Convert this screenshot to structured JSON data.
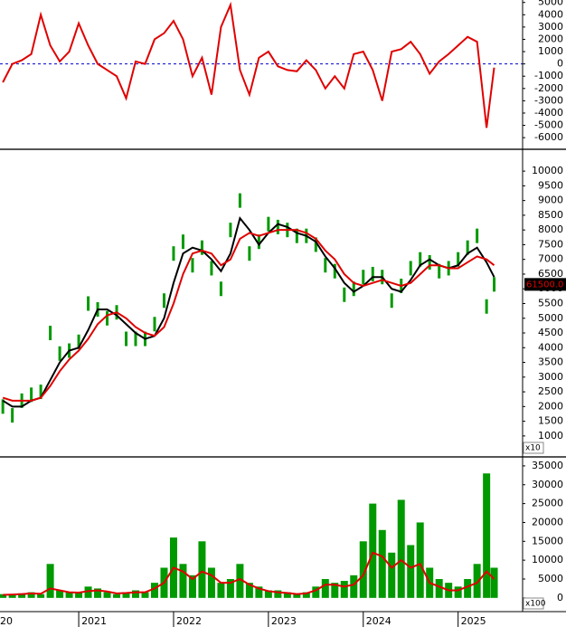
{
  "chart_data": [
    {
      "type": "line",
      "x": [
        2020.2,
        2020.3,
        2020.4,
        2020.5,
        2020.6,
        2020.7,
        2020.8,
        2020.9,
        2021.0,
        2021.1,
        2021.2,
        2021.3,
        2021.4,
        2021.5,
        2021.6,
        2021.7,
        2021.8,
        2021.9,
        2022.0,
        2022.1,
        2022.2,
        2022.3,
        2022.4,
        2022.5,
        2022.6,
        2022.7,
        2022.8,
        2022.9,
        2023.0,
        2023.1,
        2023.2,
        2023.3,
        2023.4,
        2023.5,
        2023.6,
        2023.7,
        2023.8,
        2023.9,
        2024.0,
        2024.1,
        2024.2,
        2024.3,
        2024.4,
        2024.5,
        2024.6,
        2024.7,
        2024.8,
        2024.9,
        2025.0,
        2025.1,
        2025.2,
        2025.3,
        2025.38
      ],
      "xlim": [
        2020.17,
        2025.68
      ],
      "ylim": [
        -6800,
        5200
      ],
      "yticks": [
        5000,
        4000,
        3000,
        2000,
        1000,
        0,
        -1000,
        -2000,
        -3000,
        -4000,
        -5000,
        -6000
      ],
      "baseline": 0,
      "series": [
        {
          "color": "#e00000",
          "style": "line",
          "values": [
            -1500,
            0,
            300,
            800,
            4000,
            1500,
            200,
            1000,
            3300,
            1500,
            0,
            -500,
            -1000,
            -2800,
            200,
            0,
            2000,
            2500,
            3500,
            2000,
            -1000,
            500,
            -2500,
            3000,
            4800,
            -500,
            -2500,
            500,
            1000,
            -200,
            -500,
            -600,
            300,
            -500,
            -2000,
            -1000,
            -2000,
            800,
            1000,
            -500,
            -3000,
            1000,
            1200,
            1800,
            800,
            -800,
            200,
            800,
            1500,
            2200,
            1800,
            -5200,
            -300
          ]
        }
      ]
    },
    {
      "type": "line",
      "x": [
        2020.2,
        2020.3,
        2020.4,
        2020.5,
        2020.6,
        2020.7,
        2020.8,
        2020.9,
        2021.0,
        2021.1,
        2021.2,
        2021.3,
        2021.4,
        2021.5,
        2021.6,
        2021.7,
        2021.8,
        2021.9,
        2022.0,
        2022.1,
        2022.2,
        2022.3,
        2022.4,
        2022.5,
        2022.6,
        2022.7,
        2022.8,
        2022.9,
        2023.0,
        2023.1,
        2023.2,
        2023.3,
        2023.4,
        2023.5,
        2023.6,
        2023.7,
        2023.8,
        2023.9,
        2024.0,
        2024.1,
        2024.2,
        2024.3,
        2024.4,
        2024.5,
        2024.6,
        2024.7,
        2024.8,
        2024.9,
        2025.0,
        2025.1,
        2025.2,
        2025.3,
        2025.38
      ],
      "xlim": [
        2020.17,
        2025.68
      ],
      "ylim": [
        350,
        10680
      ],
      "yticks": [
        10000,
        9500,
        9000,
        8500,
        8000,
        7500,
        7000,
        6500,
        6000,
        5500,
        5000,
        4500,
        4000,
        3500,
        3000,
        2500,
        2000,
        1500,
        1000
      ],
      "unit_label": "x10",
      "last_label": "61500.0",
      "series": [
        {
          "color": "#009900",
          "style": "bars",
          "values": [
            2000,
            1700,
            2200,
            2400,
            2500,
            4500,
            3800,
            3900,
            4200,
            5500,
            5300,
            5000,
            5200,
            4300,
            4300,
            4300,
            4800,
            5600,
            7200,
            7600,
            6800,
            7400,
            6700,
            6000,
            8000,
            9000,
            7200,
            7600,
            8200,
            8100,
            8000,
            7800,
            7800,
            7500,
            6800,
            6600,
            5800,
            6000,
            6400,
            6500,
            6400,
            5600,
            6100,
            6700,
            7000,
            6900,
            6600,
            6700,
            7000,
            7400,
            7800,
            5400,
            6150
          ]
        },
        {
          "color": "#000000",
          "style": "line",
          "values": [
            2200,
            2000,
            2000,
            2200,
            2300,
            2900,
            3500,
            3900,
            4000,
            4600,
            5300,
            5300,
            5100,
            4800,
            4500,
            4300,
            4400,
            5000,
            6200,
            7200,
            7400,
            7300,
            7000,
            6600,
            7200,
            8400,
            8000,
            7500,
            7900,
            8200,
            8100,
            7900,
            7800,
            7600,
            7100,
            6700,
            6200,
            5900,
            6100,
            6400,
            6400,
            6000,
            5900,
            6300,
            6800,
            7000,
            6800,
            6700,
            6800,
            7200,
            7400,
            6900,
            6400
          ]
        },
        {
          "color": "#e00000",
          "style": "line",
          "values": [
            2300,
            2200,
            2200,
            2200,
            2300,
            2700,
            3200,
            3600,
            3900,
            4300,
            4800,
            5100,
            5200,
            5000,
            4700,
            4500,
            4400,
            4700,
            5500,
            6500,
            7200,
            7300,
            7200,
            6800,
            7000,
            7700,
            7900,
            7800,
            7900,
            8000,
            8000,
            8000,
            7900,
            7700,
            7300,
            7000,
            6500,
            6200,
            6100,
            6200,
            6300,
            6200,
            6100,
            6200,
            6500,
            6800,
            6800,
            6700,
            6700,
            6900,
            7100,
            7000,
            6800
          ]
        }
      ]
    },
    {
      "type": "bar",
      "x": [
        2020.2,
        2020.3,
        2020.4,
        2020.5,
        2020.6,
        2020.7,
        2020.8,
        2020.9,
        2021.0,
        2021.1,
        2021.2,
        2021.3,
        2021.4,
        2021.5,
        2021.6,
        2021.7,
        2021.8,
        2021.9,
        2022.0,
        2022.1,
        2022.2,
        2022.3,
        2022.4,
        2022.5,
        2022.6,
        2022.7,
        2022.8,
        2022.9,
        2023.0,
        2023.1,
        2023.2,
        2023.3,
        2023.4,
        2023.5,
        2023.6,
        2023.7,
        2023.8,
        2023.9,
        2024.0,
        2024.1,
        2024.2,
        2024.3,
        2024.4,
        2024.5,
        2024.6,
        2024.7,
        2024.8,
        2024.9,
        2025.0,
        2025.1,
        2025.2,
        2025.3,
        2025.38
      ],
      "xlim": [
        2020.17,
        2025.68
      ],
      "ylim": [
        -3400,
        36900
      ],
      "yticks": [
        35000,
        30000,
        25000,
        20000,
        15000,
        10000,
        5000,
        0
      ],
      "unit_label": "x100",
      "xticks": [
        {
          "value": 2020,
          "label": "20"
        },
        2021,
        2022,
        2023,
        2024,
        2025
      ],
      "series": [
        {
          "color": "#009900",
          "style": "bars",
          "values": [
            1000,
            800,
            1200,
            1500,
            1000,
            9000,
            2000,
            1500,
            1500,
            3000,
            2500,
            1500,
            1000,
            1500,
            2000,
            1500,
            4000,
            8000,
            16000,
            9000,
            6000,
            15000,
            8000,
            4000,
            5000,
            9000,
            4000,
            3000,
            2000,
            2000,
            1500,
            1200,
            1500,
            3000,
            5000,
            4000,
            4500,
            6000,
            15000,
            25000,
            18000,
            12000,
            26000,
            14000,
            20000,
            8000,
            5000,
            4000,
            3000,
            5000,
            9000,
            33000,
            8000
          ]
        },
        {
          "color": "#e00000",
          "style": "line",
          "values": [
            800,
            900,
            1000,
            1200,
            1100,
            2500,
            2000,
            1500,
            1400,
            1800,
            2000,
            1700,
            1200,
            1300,
            1500,
            1500,
            2500,
            4000,
            8000,
            7000,
            5000,
            7000,
            6000,
            4000,
            4000,
            5000,
            3500,
            2500,
            1800,
            1500,
            1300,
            1000,
            1200,
            2000,
            3500,
            3500,
            3000,
            3500,
            6000,
            12000,
            11000,
            8000,
            10000,
            8000,
            9000,
            4000,
            3000,
            2000,
            2000,
            3000,
            4000,
            7000,
            5000
          ]
        }
      ]
    }
  ]
}
